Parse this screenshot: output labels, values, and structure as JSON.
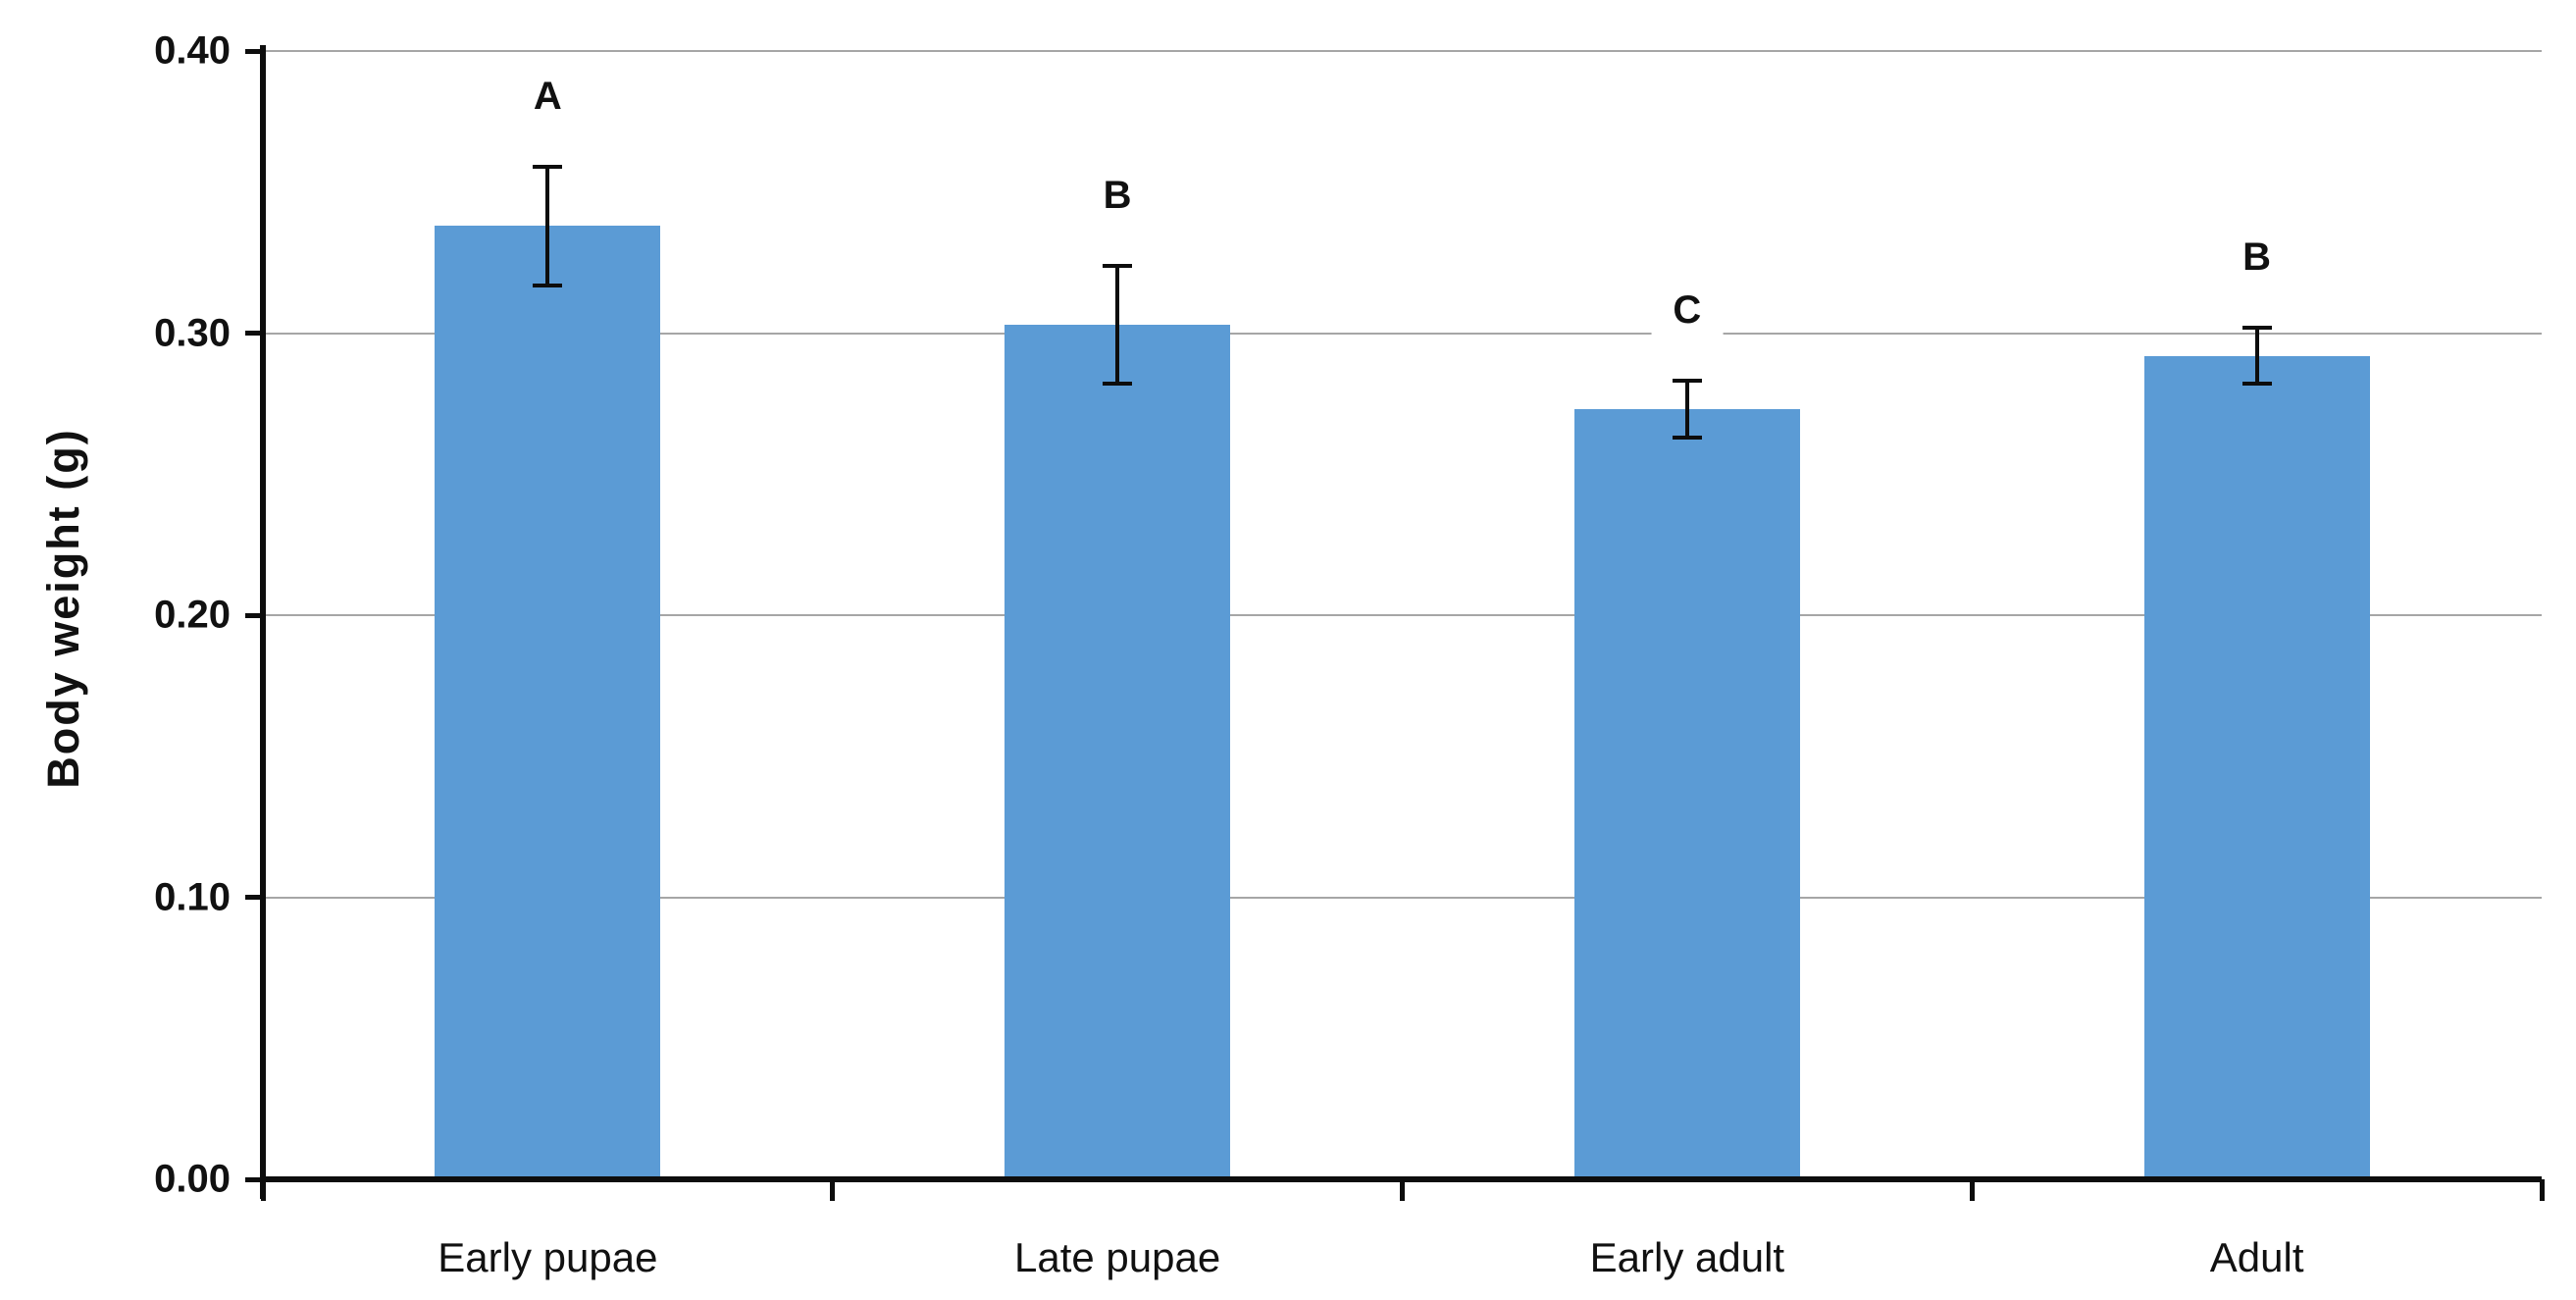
{
  "chart_data": {
    "type": "bar",
    "title": "",
    "xlabel": "",
    "ylabel": "Body weight (g)",
    "categories": [
      "Early pupae",
      "Late pupae",
      "Early adult",
      "Adult"
    ],
    "values": [
      0.338,
      0.303,
      0.273,
      0.292
    ],
    "errors": [
      0.021,
      0.021,
      0.01,
      0.01
    ],
    "significance_letters": [
      "A",
      "B",
      "C",
      "B"
    ],
    "ylim": [
      0,
      0.4
    ],
    "ytick_values": [
      0.0,
      0.1,
      0.2,
      0.3,
      0.4
    ],
    "ytick_labels": [
      "0.00",
      "0.10",
      "0.20",
      "0.30",
      "0.40"
    ],
    "grid": true,
    "legend_position": "none",
    "colors": {
      "bar": "#5b9bd5",
      "gridline": "#a6a6a6",
      "axis": "#0d0d0d",
      "text": "#111111",
      "background": "#ffffff"
    }
  }
}
